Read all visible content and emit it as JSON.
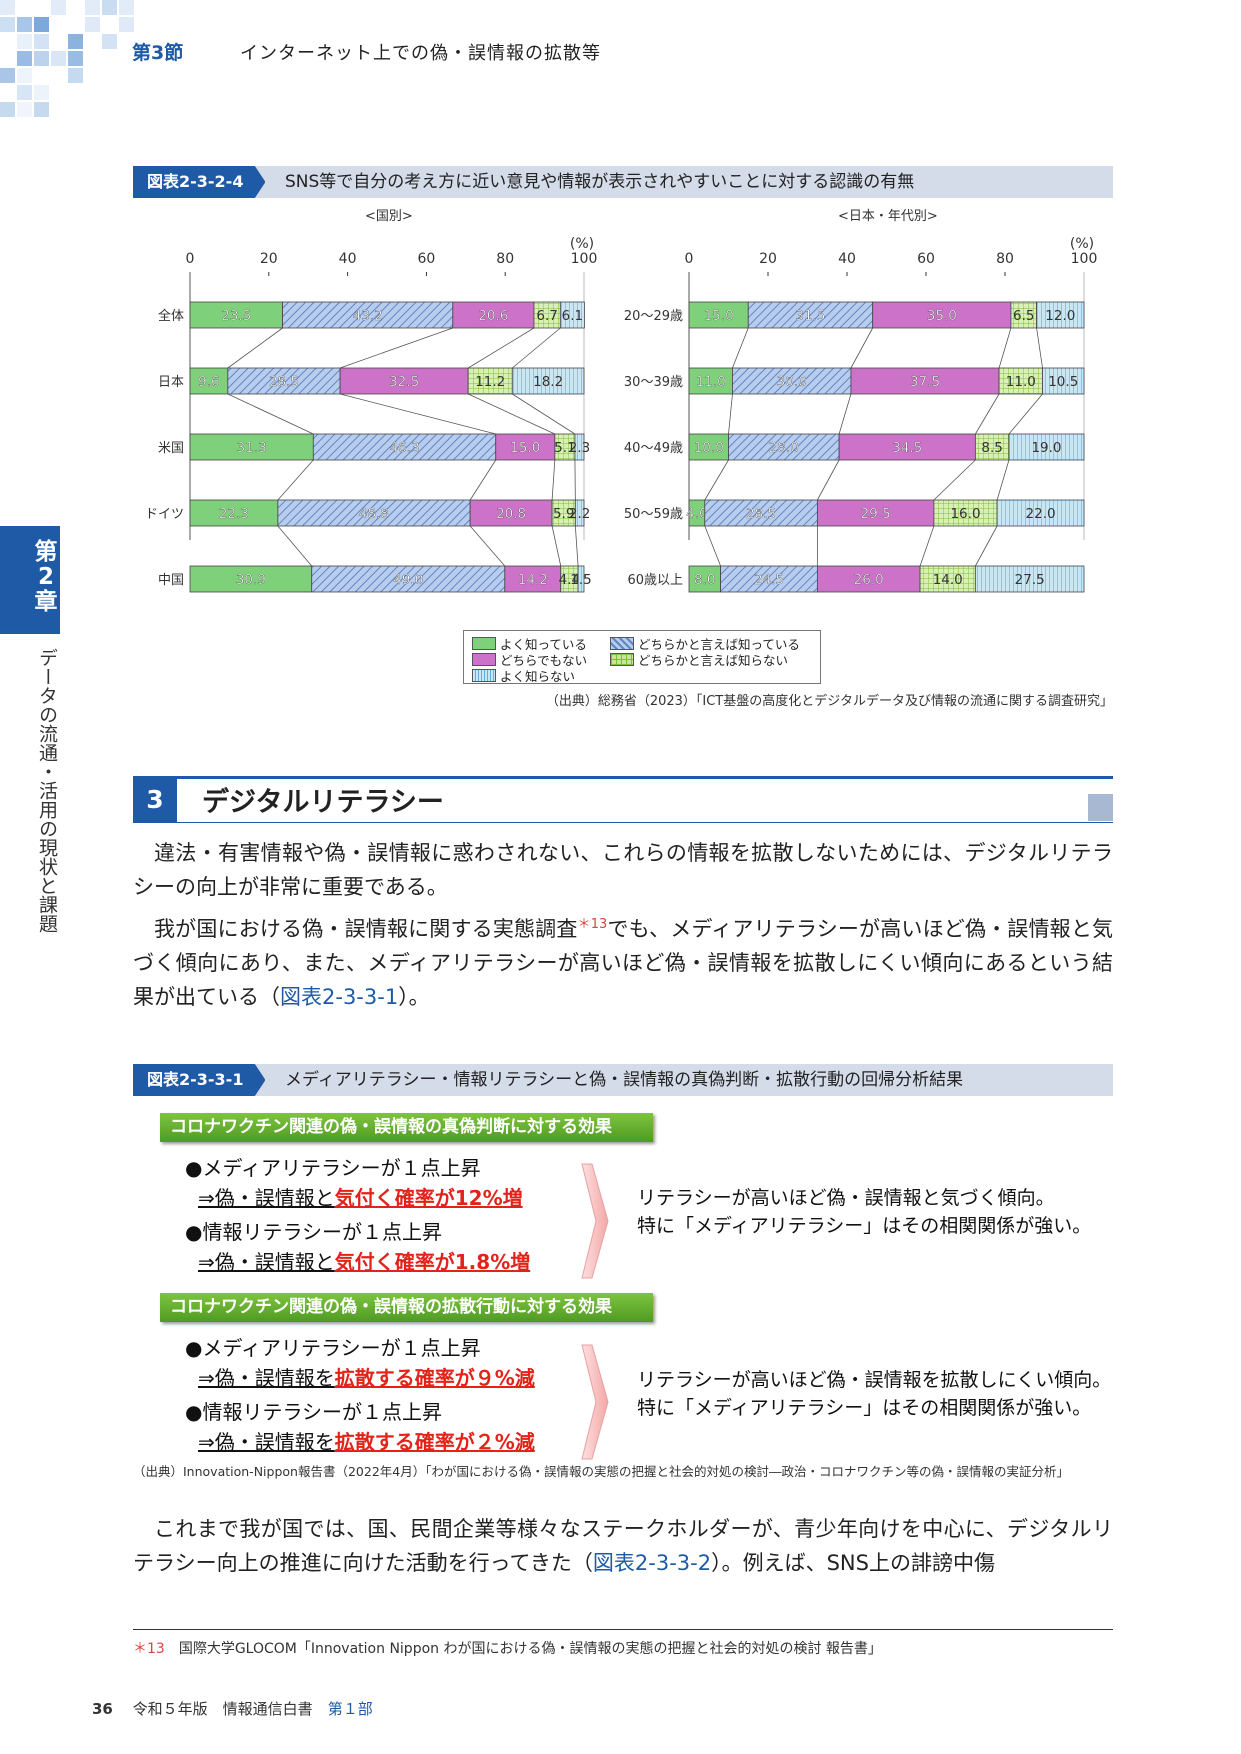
{
  "header": {
    "section": "第3節",
    "title": "インターネット上での偽・誤情報の拡散等"
  },
  "sidebar": {
    "chapter": "第2章",
    "text": "データの流通・活用の現状と課題"
  },
  "fig1": {
    "tag": "図表2-3-2-4",
    "title": "SNS等で自分の考え方に近い意見や情報が表示されやすいことに対する認識の有無",
    "left_subtitle": "<国別>",
    "right_subtitle": "<日本・年代別>",
    "source": "（出典）総務省（2023）「ICT基盤の高度化とデジタルデータ及び情報の流通に関する調査研究」"
  },
  "chart_data": [
    {
      "type": "bar",
      "orientation": "horizontal-stacked",
      "title": "<国別>",
      "unit": "(%)",
      "xlim": [
        0,
        100
      ],
      "ticks": [
        "0",
        "20",
        "40",
        "60",
        "80",
        "100"
      ],
      "categories": [
        "全体",
        "日本",
        "米国",
        "ドイツ",
        "中国"
      ],
      "series": [
        {
          "name": "よく知っている",
          "color": "#7fd07a",
          "values": [
            23.5,
            9.6,
            31.3,
            22.3,
            30.9
          ]
        },
        {
          "name": "どちらかと言えば知っている",
          "color": "#9dbbe6",
          "values": [
            43.2,
            28.5,
            46.3,
            48.8,
            49.0
          ]
        },
        {
          "name": "どちらでもない",
          "color": "#cc72c8",
          "values": [
            20.6,
            32.5,
            15.0,
            20.8,
            14.2
          ]
        },
        {
          "name": "どちらかと言えば知らない",
          "color": "#c9e59a",
          "values": [
            6.7,
            11.2,
            5.1,
            5.9,
            4.4
          ]
        },
        {
          "name": "よく知らない",
          "color": "#a9d7ef",
          "values": [
            6.1,
            18.2,
            2.3,
            2.2,
            1.5
          ]
        }
      ]
    },
    {
      "type": "bar",
      "orientation": "horizontal-stacked",
      "title": "<日本・年代別>",
      "unit": "(%)",
      "xlim": [
        0,
        100
      ],
      "ticks": [
        "0",
        "20",
        "40",
        "60",
        "80",
        "100"
      ],
      "categories": [
        "20～29歳",
        "30～39歳",
        "40～49歳",
        "50～59歳",
        "60歳以上"
      ],
      "series": [
        {
          "name": "よく知っている",
          "color": "#7fd07a",
          "values": [
            15.0,
            11.0,
            10.0,
            4.0,
            8.0
          ]
        },
        {
          "name": "どちらかと言えば知っている",
          "color": "#9dbbe6",
          "values": [
            31.5,
            30.0,
            28.0,
            28.5,
            24.5
          ]
        },
        {
          "name": "どちらでもない",
          "color": "#cc72c8",
          "values": [
            35.0,
            37.5,
            34.5,
            29.5,
            26.0
          ]
        },
        {
          "name": "どちらかと言えば知らない",
          "color": "#c9e59a",
          "values": [
            6.5,
            11.0,
            8.5,
            16.0,
            14.0
          ]
        },
        {
          "name": "よく知らない",
          "color": "#a9d7ef",
          "values": [
            12.0,
            10.5,
            19.0,
            22.0,
            27.5
          ]
        }
      ]
    }
  ],
  "legend": [
    "よく知っている",
    "どちらかと言えば知っている",
    "どちらでもない",
    "どちらかと言えば知らない",
    "よく知らない"
  ],
  "section3": {
    "number": "3",
    "title": "デジタルリテラシー",
    "p1": "違法・有害情報や偽・誤情報に惑わされない、これらの情報を拡散しないためには、デジタルリテラシーの向上が非常に重要である。",
    "p2a": "我が国における偽・誤情報に関する実態調査",
    "p2sup": "＊13",
    "p2b": "でも、メディアリテラシーが高いほど偽・誤情報と気づく傾向にあり、また、メディアリテラシーが高いほど偽・誤情報を拡散しにくい傾向にあるという結果が出ている（",
    "p2ref": "図表2-3-3-1",
    "p2c": "）。",
    "p3a": "これまで我が国では、国、民間企業等様々なステークホルダーが、青少年向けを中心に、デジタルリテラシー向上の推進に向けた活動を行ってきた（",
    "p3ref": "図表2-3-3-2",
    "p3b": "）。例えば、SNS上の誹謗中傷"
  },
  "fig2": {
    "tag": "図表2-3-3-1",
    "title": "メディアリテラシー・情報リテラシーと偽・誤情報の真偽判断・拡散行動の回帰分析結果",
    "block1": {
      "label": "コロナワクチン関連の偽・誤情報の真偽判断に対する効果",
      "i1": "●メディアリテラシーが１点上昇",
      "i1a": "⇒偽・誤情報と",
      "i1b": "気付く確率が12%増",
      "i2": "●情報リテラシーが１点上昇",
      "i2a": "⇒偽・誤情報と",
      "i2b": "気付く確率が1.8%増",
      "c1": "リテラシーが高いほど偽・誤情報と気づく傾向。",
      "c2": "特に「メディアリテラシー」はその相関関係が強い。"
    },
    "block2": {
      "label": "コロナワクチン関連の偽・誤情報の拡散行動に対する効果",
      "i1": "●メディアリテラシーが１点上昇",
      "i1a": "⇒偽・誤情報を",
      "i1b": "拡散する確率が９%減",
      "i2": "●情報リテラシーが１点上昇",
      "i2a": "⇒偽・誤情報を",
      "i2b": "拡散する確率が２%減",
      "c1": "リテラシーが高いほど偽・誤情報を拡散しにくい傾向。",
      "c2": "特に「メディアリテラシー」はその相関関係が強い。"
    },
    "source": "（出典）Innovation-Nippon報告書（2022年4月）「わが国における偽・誤情報の実態の把握と社会的対処の検討―政治・コロナワクチン等の偽・誤情報の実証分析」"
  },
  "footnote": {
    "mark": "＊13",
    "text": "国際大学GLOCOM「Innovation Nippon わが国における偽・誤情報の実態の把握と社会的対処の検討 報告書」"
  },
  "footer": {
    "page": "36",
    "book": "令和５年版　情報通信白書",
    "part": "第１部"
  }
}
